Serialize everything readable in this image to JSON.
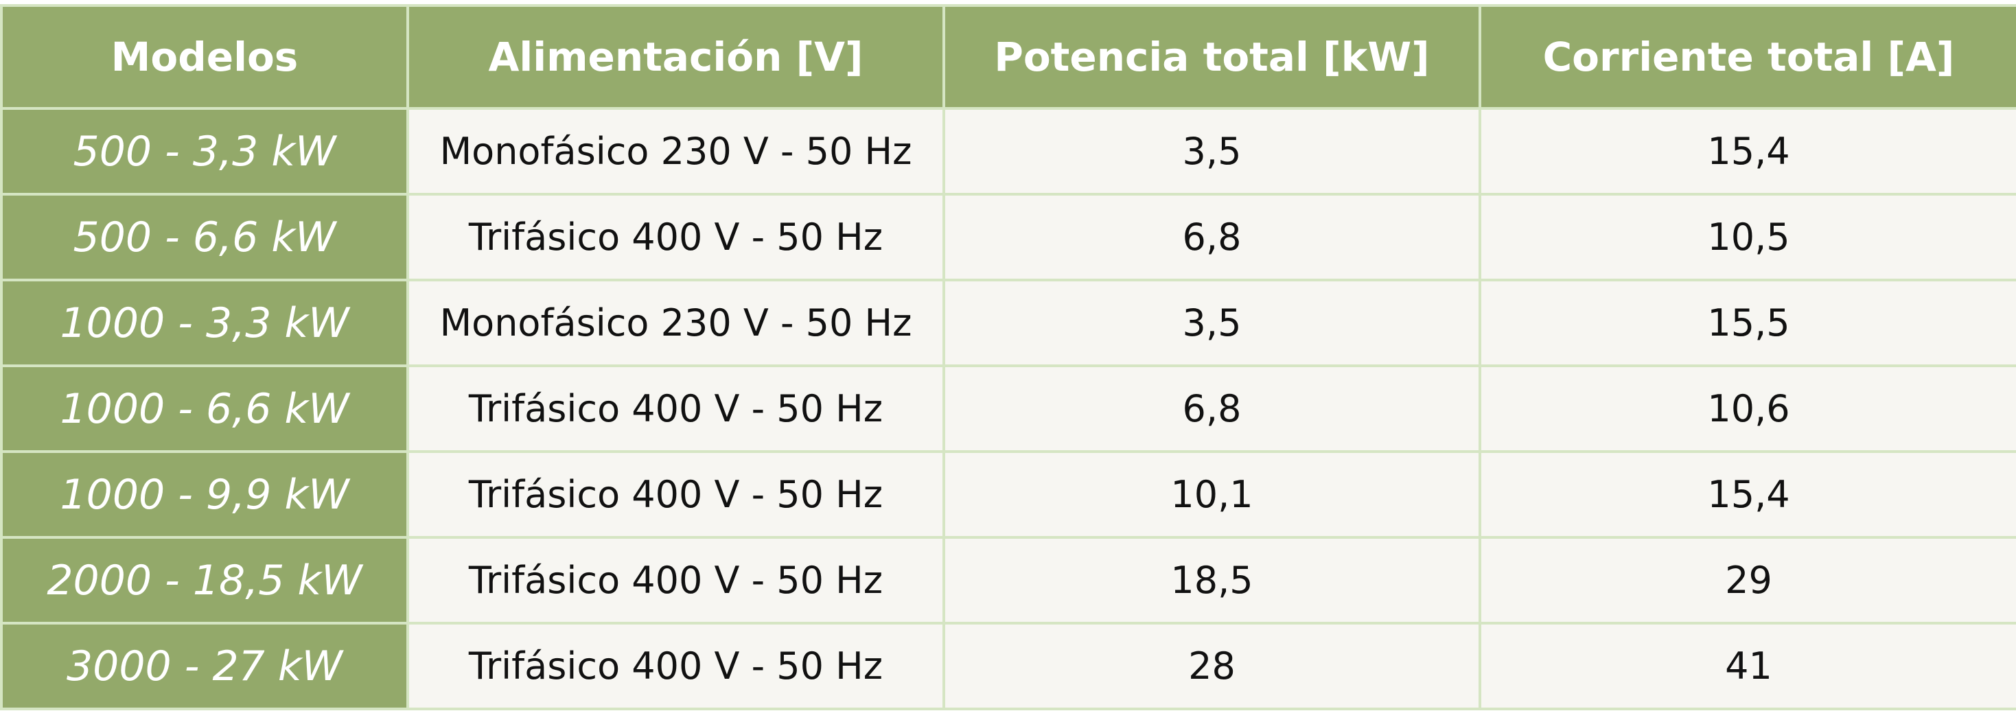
{
  "table": {
    "header": [
      "Modelos",
      "Alimentación [V]",
      "Potencia total [kW]",
      "Corriente total [A]"
    ],
    "rows": [
      [
        "500 - 3,3 kW",
        "Monofásico 230 V - 50 Hz",
        "3,5",
        "15,4"
      ],
      [
        "500 - 6,6 kW",
        "Trifásico 400 V - 50 Hz",
        "6,8",
        "10,5"
      ],
      [
        "1000 - 3,3 kW",
        "Monofásico 230 V - 50 Hz",
        "3,5",
        "15,5"
      ],
      [
        "1000 - 6,6 kW",
        "Trifásico 400 V - 50 Hz",
        "6,8",
        "10,6"
      ],
      [
        "1000 - 9,9 kW",
        "Trifásico 400 V - 50 Hz",
        "10,1",
        "15,4"
      ],
      [
        "2000 - 18,5 kW",
        "Trifásico 400 V - 50 Hz",
        "18,5",
        "29"
      ],
      [
        "3000 - 27 kW",
        "Trifásico 400 V - 50 Hz",
        "28",
        "41"
      ]
    ]
  }
}
